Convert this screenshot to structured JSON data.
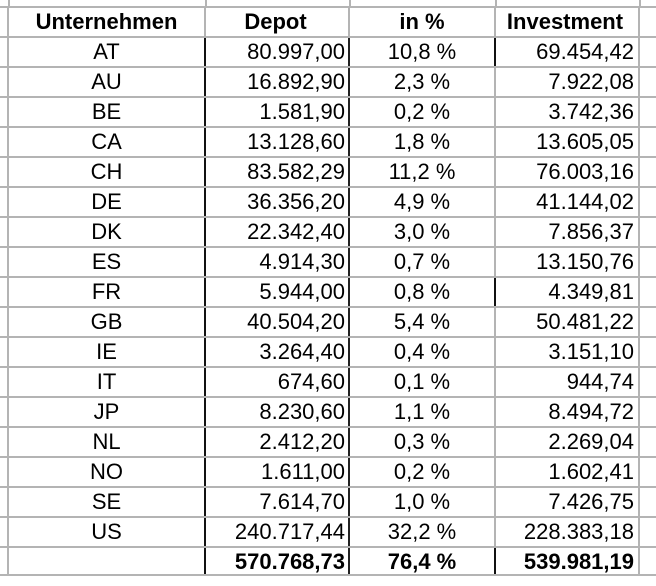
{
  "headers": [
    "Unternehmen",
    "Depot",
    "in %",
    "Investment"
  ],
  "rows": [
    [
      "AT",
      "80.997,00",
      "10,8 %",
      "69.454,42"
    ],
    [
      "AU",
      "16.892,90",
      "2,3 %",
      "7.922,08"
    ],
    [
      "BE",
      "1.581,90",
      "0,2 %",
      "3.742,36"
    ],
    [
      "CA",
      "13.128,60",
      "1,8 %",
      "13.605,05"
    ],
    [
      "CH",
      "83.582,29",
      "11,2 %",
      "76.003,16"
    ],
    [
      "DE",
      "36.356,20",
      "4,9 %",
      "41.144,02"
    ],
    [
      "DK",
      "22.342,40",
      "3,0 %",
      "7.856,37"
    ],
    [
      "ES",
      "4.914,30",
      "0,7 %",
      "13.150,76"
    ],
    [
      "FR",
      "5.944,00",
      "0,8 %",
      "4.349,81"
    ],
    [
      "GB",
      "40.504,20",
      "5,4 %",
      "50.481,22"
    ],
    [
      "IE",
      "3.264,40",
      "0,4 %",
      "3.151,10"
    ],
    [
      "IT",
      "674,60",
      "0,1 %",
      "944,74"
    ],
    [
      "JP",
      "8.230,60",
      "1,1 %",
      "8.494,72"
    ],
    [
      "NL",
      "2.412,20",
      "0,3 %",
      "2.269,04"
    ],
    [
      "NO",
      "1.611,00",
      "0,2 %",
      "1.602,41"
    ],
    [
      "SE",
      "7.614,70",
      "1,0 %",
      "7.426,75"
    ],
    [
      "US",
      "240.717,44",
      "32,2 %",
      "228.383,18"
    ]
  ],
  "total": [
    "",
    "570.768,73",
    "76,4 %",
    "539.981,19"
  ]
}
